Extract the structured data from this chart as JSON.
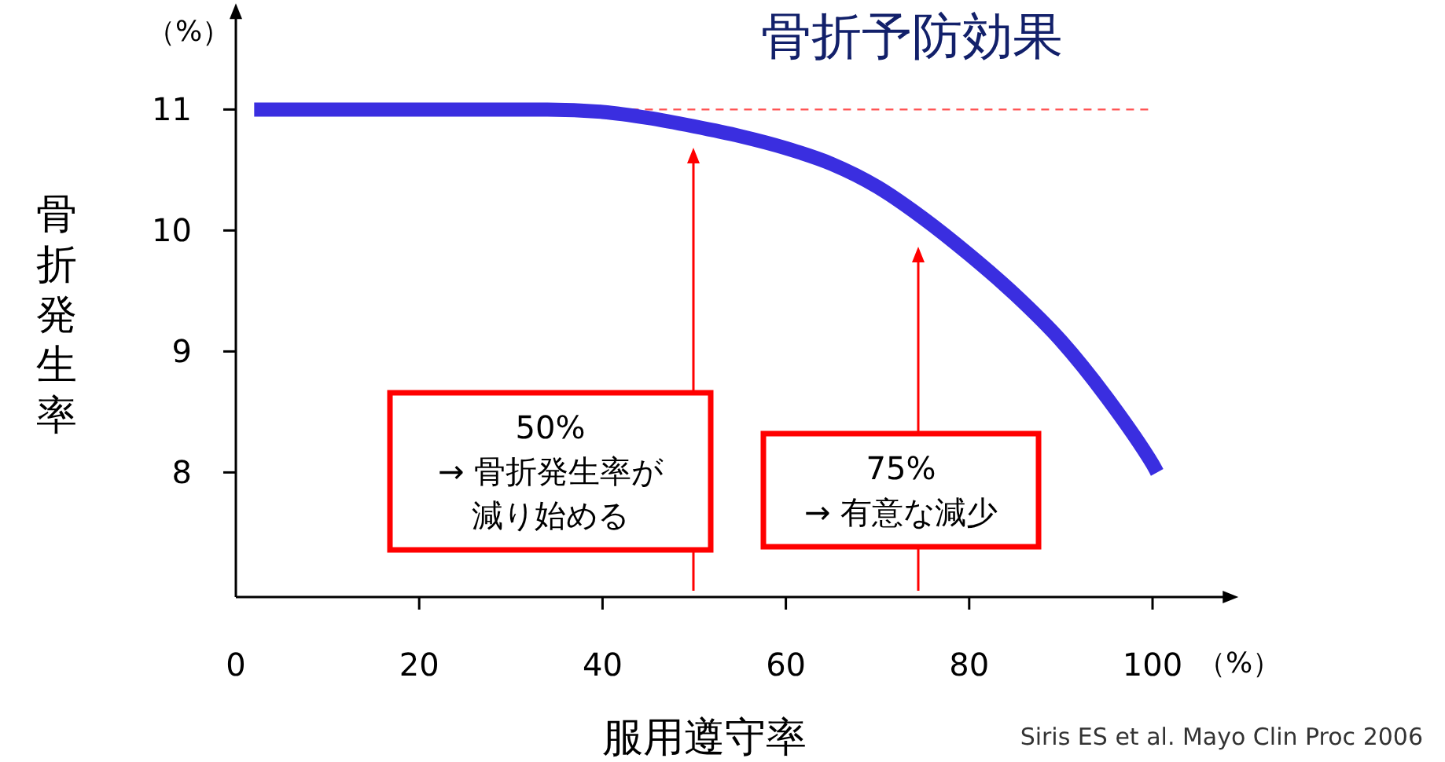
{
  "chart_data": {
    "type": "line",
    "title": "骨折予防効果",
    "xlabel": "服用遵守率",
    "ylabel": "骨折発生率",
    "x": [
      2,
      34,
      40,
      45,
      50,
      55,
      60,
      65,
      70,
      75,
      80,
      85,
      90,
      95,
      100,
      100.5
    ],
    "series": [
      {
        "color": "#3a2ee0",
        "values": [
          11,
          11,
          10.98,
          10.93,
          10.86,
          10.78,
          10.68,
          10.55,
          10.36,
          10.1,
          9.8,
          9.47,
          9.09,
          8.62,
          8.07,
          8.0
        ]
      }
    ],
    "xlim": [
      0,
      108
    ],
    "ylim": [
      6.97,
      11.8
    ],
    "xticks": [
      0,
      20,
      40,
      60,
      80,
      100
    ],
    "yticks": [
      8,
      9,
      10,
      11
    ],
    "grid": false,
    "marker": "none",
    "line_style": "solid",
    "ref_lines": [
      {
        "axis": "y",
        "value": 11,
        "color": "#ff5050",
        "line_style": "dashed"
      }
    ],
    "annotations": [
      "（%）",
      "（%）",
      "50%",
      "→ 骨折発生率が減り始める",
      "75%",
      "→ 有意な減少",
      "Siris ES et al. Mayo Clin Proc 2006"
    ]
  }
}
